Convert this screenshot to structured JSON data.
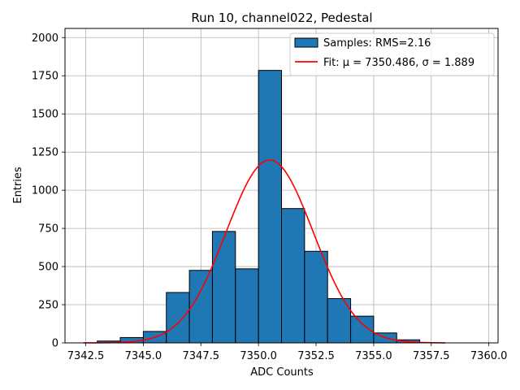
{
  "chart_data": {
    "type": "bar",
    "title": "Run 10, channel022, Pedestal",
    "xlabel": "ADC Counts",
    "ylabel": "Entries",
    "xlim": [
      7341.6,
      7360.4
    ],
    "ylim": [
      0,
      2060
    ],
    "xticks": [
      7342.5,
      7345.0,
      7347.5,
      7350.0,
      7352.5,
      7355.0,
      7357.5,
      7360.0
    ],
    "xtick_labels": [
      "7342.5",
      "7345.0",
      "7347.5",
      "7350.0",
      "7352.5",
      "7355.0",
      "7357.5",
      "7360.0"
    ],
    "yticks": [
      0,
      250,
      500,
      750,
      1000,
      1250,
      1500,
      1750,
      2000
    ],
    "ytick_labels": [
      "0",
      "250",
      "500",
      "750",
      "1000",
      "1250",
      "1500",
      "1750",
      "2000"
    ],
    "grid": true,
    "legend_position": "top-right",
    "series": [
      {
        "name": "Samples: RMS=2.16",
        "kind": "histogram",
        "color": "#1f77b4",
        "edge_color": "#000000",
        "bin_edges": [
          7343,
          7344,
          7345,
          7346,
          7347,
          7348,
          7349,
          7350,
          7351,
          7352,
          7353,
          7354,
          7355,
          7356,
          7357
        ],
        "values": [
          12,
          35,
          75,
          330,
          475,
          730,
          485,
          1785,
          880,
          600,
          290,
          175,
          65,
          20
        ]
      },
      {
        "name": "Fit: μ = 7350.486, σ = 1.889",
        "kind": "gaussian-fit",
        "color": "#ff0000",
        "mu": 7350.486,
        "sigma": 1.889,
        "amplitude": 1198,
        "x_range": [
          7342.4,
          7358.1
        ]
      }
    ]
  }
}
